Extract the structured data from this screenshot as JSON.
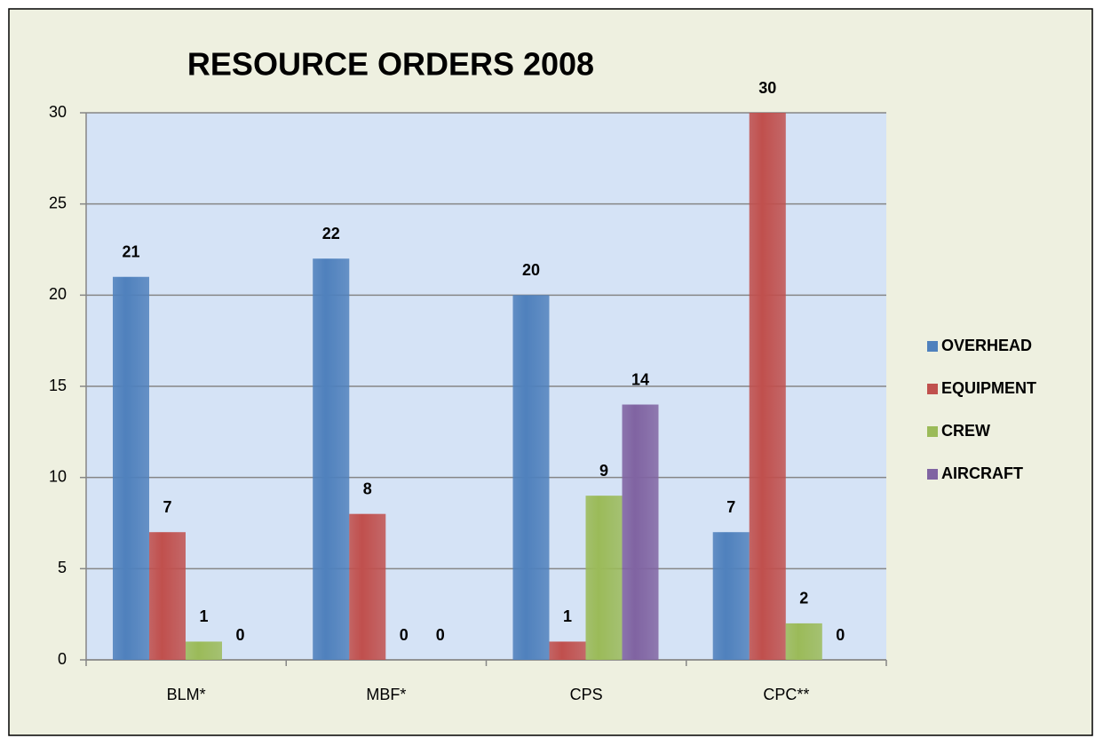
{
  "chart_data": {
    "type": "bar",
    "title": "RESOURCE  ORDERS 2008",
    "categories": [
      "BLM*",
      "MBF*",
      "CPS",
      "CPC**"
    ],
    "series": [
      {
        "name": "OVERHEAD",
        "color": "#4f81bd",
        "values": [
          21,
          22,
          20,
          7
        ]
      },
      {
        "name": "EQUIPMENT",
        "color": "#c0504d",
        "values": [
          7,
          8,
          1,
          30
        ]
      },
      {
        "name": "CREW",
        "color": "#9bbb59",
        "values": [
          1,
          0,
          9,
          2
        ]
      },
      {
        "name": "AIRCRAFT",
        "color": "#8064a2",
        "values": [
          0,
          0,
          14,
          0
        ]
      }
    ],
    "ylim": [
      0,
      30
    ],
    "yticks": [
      0,
      5,
      10,
      15,
      20,
      25,
      30
    ],
    "grid": true,
    "legend": "right"
  }
}
